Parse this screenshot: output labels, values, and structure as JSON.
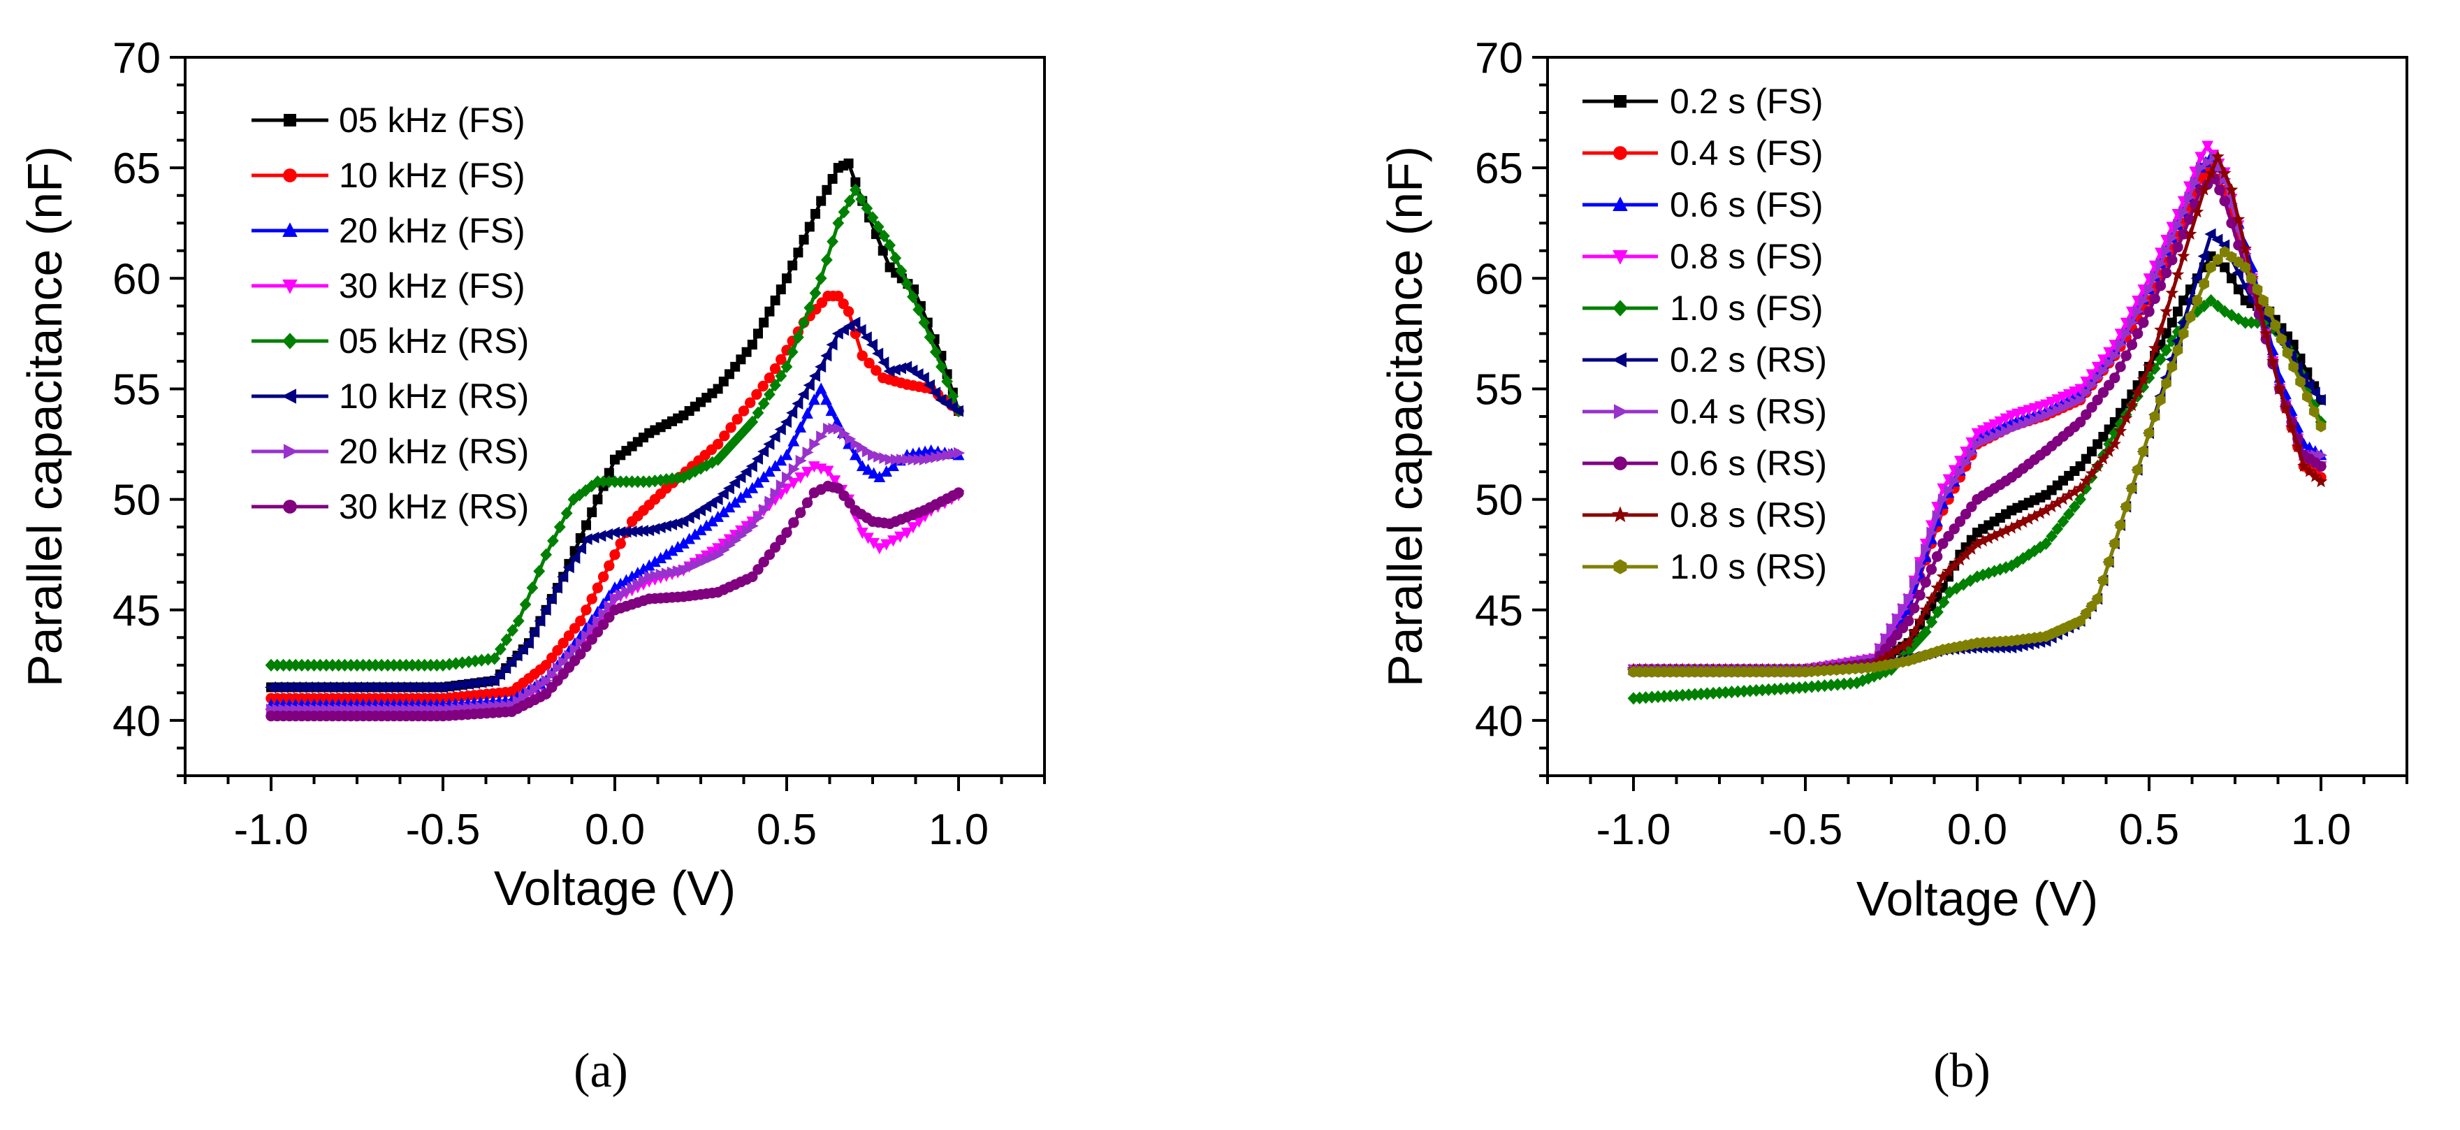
{
  "chart_data": [
    {
      "type": "line",
      "panel": "a",
      "xlabel": "Voltage (V)",
      "ylabel": "Parallel capacitance (nF)",
      "xlim": [
        -1.25,
        1.25
      ],
      "ylim": [
        37.5,
        70
      ],
      "xticks": [
        -1.0,
        -0.5,
        0.0,
        0.5,
        1.0
      ],
      "xtick_labels": [
        "-1.0",
        "-0.5",
        "0.0",
        "0.5",
        "1.0"
      ],
      "yticks": [
        40,
        45,
        50,
        55,
        60,
        65,
        70
      ],
      "ytick_labels": [
        "40",
        "45",
        "50",
        "55",
        "60",
        "65",
        "70"
      ],
      "grid": false,
      "legend_position": "top-left",
      "series": [
        {
          "name": "05 kHz (FS)",
          "color": "#000000",
          "marker": "square",
          "x": [
            -1.0,
            -0.5,
            -0.35,
            -0.25,
            -0.15,
            -0.05,
            0.0,
            0.1,
            0.2,
            0.3,
            0.4,
            0.5,
            0.6,
            0.65,
            0.68,
            0.72,
            0.8,
            0.87,
            0.95,
            1.0
          ],
          "y": [
            41.5,
            41.5,
            41.8,
            43.5,
            46.5,
            50.0,
            51.8,
            53.0,
            53.8,
            55.0,
            57.0,
            60.0,
            63.5,
            65.0,
            65.2,
            63.5,
            60.5,
            59.5,
            56.5,
            54.0
          ]
        },
        {
          "name": "10 kHz (FS)",
          "color": "#ff0000",
          "marker": "circle",
          "x": [
            -1.0,
            -0.5,
            -0.3,
            -0.2,
            -0.1,
            0.0,
            0.05,
            0.15,
            0.3,
            0.45,
            0.55,
            0.62,
            0.65,
            0.68,
            0.72,
            0.78,
            0.85,
            0.92,
            1.0
          ],
          "y": [
            41.0,
            41.0,
            41.3,
            42.5,
            44.5,
            47.5,
            49.0,
            50.5,
            52.5,
            55.5,
            58.0,
            59.2,
            59.2,
            58.5,
            56.5,
            55.5,
            55.2,
            55.0,
            54.0
          ]
        },
        {
          "name": "20 kHz (FS)",
          "color": "#0000ff",
          "marker": "triangle-up",
          "x": [
            -1.0,
            -0.5,
            -0.3,
            -0.2,
            -0.1,
            0.0,
            0.1,
            0.2,
            0.3,
            0.4,
            0.5,
            0.58,
            0.6,
            0.63,
            0.68,
            0.72,
            0.77,
            0.85,
            0.92,
            1.0
          ],
          "y": [
            40.7,
            40.7,
            40.9,
            41.8,
            43.8,
            46.0,
            47.0,
            48.0,
            49.2,
            50.5,
            52.0,
            54.5,
            55.0,
            54.0,
            52.5,
            51.5,
            51.0,
            52.0,
            52.2,
            52.0
          ]
        },
        {
          "name": "30 kHz (FS)",
          "color": "#ff00ff",
          "marker": "triangle-down",
          "x": [
            -1.0,
            -0.5,
            -0.3,
            -0.2,
            -0.1,
            0.0,
            0.1,
            0.2,
            0.3,
            0.4,
            0.5,
            0.58,
            0.62,
            0.68,
            0.72,
            0.77,
            0.85,
            0.92,
            1.0
          ],
          "y": [
            40.3,
            40.3,
            40.5,
            41.2,
            43.0,
            45.5,
            46.3,
            46.8,
            47.8,
            49.0,
            50.5,
            51.5,
            51.3,
            50.0,
            48.5,
            47.8,
            48.5,
            49.5,
            50.2
          ]
        },
        {
          "name": "05 kHz (RS)",
          "color": "#008000",
          "marker": "diamond",
          "x": [
            -1.0,
            -0.5,
            -0.35,
            -0.28,
            -0.2,
            -0.12,
            -0.05,
            0.0,
            0.1,
            0.2,
            0.3,
            0.4,
            0.5,
            0.6,
            0.65,
            0.7,
            0.8,
            0.9,
            0.95,
            1.0
          ],
          "y": [
            42.5,
            42.5,
            42.8,
            44.5,
            47.5,
            50.0,
            50.8,
            50.8,
            50.8,
            51.0,
            51.8,
            53.5,
            56.0,
            60.0,
            62.5,
            64.0,
            61.5,
            58.0,
            56.0,
            54.0
          ]
        },
        {
          "name": "10 kHz (RS)",
          "color": "#000080",
          "marker": "triangle-left",
          "x": [
            -1.0,
            -0.5,
            -0.35,
            -0.25,
            -0.15,
            -0.08,
            0.0,
            0.1,
            0.2,
            0.3,
            0.4,
            0.5,
            0.6,
            0.65,
            0.7,
            0.75,
            0.8,
            0.85,
            0.9,
            0.95,
            1.0
          ],
          "y": [
            41.5,
            41.5,
            41.8,
            43.5,
            46.5,
            48.2,
            48.5,
            48.6,
            49.0,
            50.0,
            51.5,
            53.5,
            56.0,
            57.5,
            58.0,
            57.0,
            55.8,
            56.0,
            55.5,
            54.5,
            54.0
          ]
        },
        {
          "name": "20 kHz (RS)",
          "color": "#9932cc",
          "marker": "triangle-right",
          "x": [
            -1.0,
            -0.5,
            -0.3,
            -0.2,
            -0.1,
            0.0,
            0.1,
            0.2,
            0.3,
            0.4,
            0.5,
            0.58,
            0.62,
            0.65,
            0.7,
            0.75,
            0.8,
            0.9,
            1.0
          ],
          "y": [
            40.5,
            40.5,
            40.7,
            41.8,
            43.5,
            45.5,
            46.5,
            46.8,
            47.5,
            48.8,
            51.0,
            52.5,
            53.2,
            53.2,
            52.5,
            52.0,
            51.8,
            51.8,
            52.1
          ]
        },
        {
          "name": "30 kHz (RS)",
          "color": "#800080",
          "marker": "circle",
          "x": [
            -1.0,
            -0.5,
            -0.3,
            -0.2,
            -0.1,
            0.0,
            0.1,
            0.2,
            0.3,
            0.4,
            0.5,
            0.58,
            0.62,
            0.65,
            0.7,
            0.75,
            0.8,
            0.9,
            1.0
          ],
          "y": [
            40.2,
            40.2,
            40.4,
            41.2,
            43.0,
            45.0,
            45.5,
            45.6,
            45.8,
            46.5,
            48.5,
            50.3,
            50.6,
            50.5,
            49.5,
            49.0,
            48.9,
            49.5,
            50.3
          ]
        }
      ]
    },
    {
      "type": "line",
      "panel": "b",
      "xlabel": "Voltage (V)",
      "ylabel": "Parallel capacitance (nF)",
      "xlim": [
        -1.25,
        1.25
      ],
      "ylim": [
        37.5,
        70
      ],
      "xticks": [
        -1.0,
        -0.5,
        0.0,
        0.5,
        1.0
      ],
      "xtick_labels": [
        "-1.0",
        "-0.5",
        "0.0",
        "0.5",
        "1.0"
      ],
      "yticks": [
        40,
        45,
        50,
        55,
        60,
        65,
        70
      ],
      "ytick_labels": [
        "40",
        "45",
        "50",
        "55",
        "60",
        "65",
        "70"
      ],
      "grid": false,
      "legend_position": "top-left",
      "series": [
        {
          "name": "0.2 s (FS)",
          "color": "#000000",
          "marker": "square",
          "x": [
            -1.0,
            -0.5,
            -0.3,
            -0.2,
            -0.1,
            -0.05,
            0.0,
            0.1,
            0.2,
            0.3,
            0.4,
            0.5,
            0.6,
            0.68,
            0.72,
            0.78,
            0.85,
            0.92,
            1.0
          ],
          "y": [
            42.3,
            42.3,
            42.5,
            43.5,
            46.0,
            47.5,
            48.5,
            49.5,
            50.2,
            51.5,
            53.5,
            56.0,
            59.0,
            61.0,
            60.5,
            59.0,
            58.5,
            57.0,
            54.5
          ]
        },
        {
          "name": "0.4 s (FS)",
          "color": "#ff0000",
          "marker": "circle",
          "x": [
            -1.0,
            -0.5,
            -0.3,
            -0.2,
            -0.1,
            0.0,
            0.1,
            0.2,
            0.3,
            0.4,
            0.5,
            0.6,
            0.65,
            0.68,
            0.72,
            0.8,
            0.88,
            0.95,
            1.0
          ],
          "y": [
            42.3,
            42.3,
            42.7,
            45.0,
            49.5,
            52.5,
            53.3,
            53.8,
            54.5,
            56.5,
            59.0,
            62.5,
            64.5,
            65.0,
            64.0,
            60.0,
            55.0,
            51.5,
            51.0
          ]
        },
        {
          "name": "0.6 s (FS)",
          "color": "#0000ff",
          "marker": "triangle-up",
          "x": [
            -1.0,
            -0.5,
            -0.3,
            -0.2,
            -0.1,
            0.0,
            0.1,
            0.2,
            0.3,
            0.4,
            0.5,
            0.6,
            0.65,
            0.68,
            0.72,
            0.8,
            0.88,
            0.95,
            1.0
          ],
          "y": [
            42.3,
            42.3,
            42.7,
            45.0,
            49.8,
            52.8,
            53.5,
            54.0,
            54.8,
            56.8,
            59.5,
            63.0,
            65.0,
            65.5,
            64.5,
            60.5,
            55.5,
            52.5,
            52.0
          ]
        },
        {
          "name": "0.8 s (FS)",
          "color": "#ff00ff",
          "marker": "triangle-down",
          "x": [
            -1.0,
            -0.5,
            -0.3,
            -0.2,
            -0.1,
            0.0,
            0.1,
            0.2,
            0.3,
            0.4,
            0.5,
            0.6,
            0.65,
            0.67,
            0.72,
            0.8,
            0.88,
            0.95,
            1.0
          ],
          "y": [
            42.3,
            42.3,
            42.8,
            45.5,
            50.5,
            53.0,
            53.8,
            54.3,
            55.0,
            57.0,
            60.0,
            63.5,
            65.5,
            66.0,
            64.8,
            60.0,
            55.0,
            52.0,
            51.5
          ]
        },
        {
          "name": "1.0 s (FS)",
          "color": "#008000",
          "marker": "diamond",
          "x": [
            -1.0,
            -0.5,
            -0.35,
            -0.25,
            -0.15,
            -0.08,
            0.0,
            0.1,
            0.2,
            0.3,
            0.4,
            0.5,
            0.6,
            0.68,
            0.72,
            0.78,
            0.85,
            0.92,
            1.0
          ],
          "y": [
            41.0,
            41.5,
            41.7,
            42.3,
            44.0,
            45.8,
            46.5,
            47.0,
            48.0,
            50.0,
            53.0,
            55.5,
            58.0,
            59.0,
            58.5,
            58.0,
            58.0,
            56.5,
            53.5
          ]
        },
        {
          "name": "0.2 s (RS)",
          "color": "#000080",
          "marker": "triangle-left",
          "x": [
            -1.0,
            -0.5,
            -0.3,
            -0.2,
            -0.1,
            0.0,
            0.1,
            0.2,
            0.3,
            0.35,
            0.4,
            0.5,
            0.6,
            0.68,
            0.72,
            0.8,
            0.88,
            0.95,
            1.0
          ],
          "y": [
            42.3,
            42.3,
            42.5,
            42.8,
            43.2,
            43.3,
            43.3,
            43.6,
            44.5,
            45.5,
            48.0,
            53.0,
            58.0,
            62.0,
            61.5,
            59.0,
            57.5,
            55.5,
            54.5
          ]
        },
        {
          "name": "0.4 s (RS)",
          "color": "#9932cc",
          "marker": "triangle-right",
          "x": [
            -1.0,
            -0.5,
            -0.3,
            -0.2,
            -0.1,
            0.0,
            0.1,
            0.2,
            0.3,
            0.4,
            0.5,
            0.6,
            0.65,
            0.69,
            0.72,
            0.8,
            0.88,
            0.95,
            1.0
          ],
          "y": [
            42.3,
            42.3,
            42.8,
            45.5,
            50.0,
            52.5,
            53.2,
            53.8,
            54.5,
            56.5,
            59.5,
            63.0,
            65.0,
            65.5,
            64.5,
            60.0,
            55.0,
            52.0,
            52.0
          ]
        },
        {
          "name": "0.6 s (RS)",
          "color": "#800080",
          "marker": "circle",
          "x": [
            -1.0,
            -0.5,
            -0.3,
            -0.2,
            -0.1,
            0.0,
            0.1,
            0.2,
            0.3,
            0.4,
            0.5,
            0.6,
            0.65,
            0.69,
            0.72,
            0.8,
            0.88,
            0.95,
            1.0
          ],
          "y": [
            42.2,
            42.2,
            42.6,
            44.5,
            48.0,
            50.0,
            51.0,
            52.2,
            53.5,
            55.5,
            58.5,
            62.0,
            64.0,
            64.5,
            63.5,
            59.5,
            55.0,
            52.0,
            51.5
          ]
        },
        {
          "name": "0.8 s (RS)",
          "color": "#8b0000",
          "marker": "star",
          "x": [
            -1.0,
            -0.5,
            -0.3,
            -0.2,
            -0.1,
            0.0,
            0.1,
            0.2,
            0.3,
            0.4,
            0.5,
            0.6,
            0.66,
            0.7,
            0.74,
            0.8,
            0.88,
            0.95,
            1.0
          ],
          "y": [
            42.3,
            42.3,
            42.5,
            43.5,
            46.5,
            48.0,
            48.7,
            49.5,
            50.5,
            52.5,
            56.0,
            61.0,
            64.0,
            65.5,
            64.0,
            60.0,
            55.0,
            51.5,
            50.8
          ]
        },
        {
          "name": "1.0 s (RS)",
          "color": "#808000",
          "marker": "hexagon",
          "x": [
            -1.0,
            -0.5,
            -0.3,
            -0.2,
            -0.1,
            0.0,
            0.1,
            0.2,
            0.3,
            0.35,
            0.4,
            0.5,
            0.6,
            0.68,
            0.72,
            0.78,
            0.85,
            0.92,
            1.0
          ],
          "y": [
            42.2,
            42.2,
            42.4,
            42.7,
            43.2,
            43.5,
            43.6,
            43.8,
            44.5,
            45.5,
            48.0,
            53.0,
            57.5,
            60.5,
            61.2,
            60.5,
            58.5,
            56.0,
            53.3
          ]
        }
      ]
    }
  ],
  "panel_labels": [
    "(a)",
    "(b)"
  ]
}
